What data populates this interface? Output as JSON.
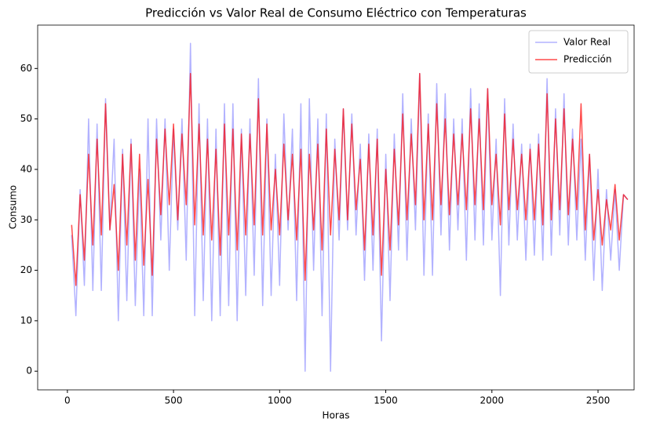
{
  "chart_data": {
    "type": "line",
    "title": "Predicción vs Valor Real de Consumo Eléctrico con Temperaturas",
    "x_label": "Horas",
    "y_label": "Consumo",
    "x": [
      20,
      40,
      60,
      80,
      100,
      120,
      140,
      160,
      180,
      200,
      220,
      240,
      260,
      280,
      300,
      320,
      340,
      360,
      380,
      400,
      420,
      440,
      460,
      480,
      500,
      520,
      540,
      560,
      580,
      600,
      620,
      640,
      660,
      680,
      700,
      720,
      740,
      760,
      780,
      800,
      820,
      840,
      860,
      880,
      900,
      920,
      940,
      960,
      980,
      1000,
      1020,
      1040,
      1060,
      1080,
      1100,
      1120,
      1140,
      1160,
      1180,
      1200,
      1220,
      1240,
      1260,
      1280,
      1300,
      1320,
      1340,
      1360,
      1380,
      1400,
      1420,
      1440,
      1460,
      1480,
      1500,
      1520,
      1540,
      1560,
      1580,
      1600,
      1620,
      1640,
      1660,
      1680,
      1700,
      1720,
      1740,
      1760,
      1780,
      1800,
      1820,
      1840,
      1860,
      1880,
      1900,
      1920,
      1940,
      1960,
      1980,
      2000,
      2020,
      2040,
      2060,
      2080,
      2100,
      2120,
      2140,
      2160,
      2180,
      2200,
      2220,
      2240,
      2260,
      2280,
      2300,
      2320,
      2340,
      2360,
      2380,
      2400,
      2420,
      2440,
      2460,
      2480,
      2500,
      2520,
      2540,
      2560,
      2580,
      2600,
      2620,
      2640
    ],
    "series": [
      {
        "name": "Valor Real",
        "color": "#0000ff",
        "alpha": 0.3,
        "values": [
          27,
          11,
          36,
          17,
          50,
          16,
          49,
          16,
          54,
          28,
          46,
          10,
          44,
          14,
          46,
          13,
          40,
          11,
          50,
          11,
          50,
          26,
          50,
          20,
          48,
          28,
          50,
          22,
          65,
          11,
          53,
          14,
          50,
          10,
          48,
          11,
          53,
          13,
          53,
          10,
          48,
          15,
          50,
          19,
          58,
          13,
          50,
          15,
          43,
          17,
          51,
          28,
          48,
          14,
          53,
          0,
          54,
          20,
          50,
          11,
          51,
          0,
          46,
          26,
          52,
          28,
          51,
          27,
          45,
          18,
          47,
          20,
          48,
          6,
          43,
          14,
          47,
          24,
          55,
          22,
          50,
          28,
          59,
          19,
          51,
          19,
          57,
          27,
          55,
          24,
          50,
          28,
          50,
          22,
          56,
          26,
          53,
          25,
          56,
          26,
          46,
          15,
          54,
          25,
          49,
          26,
          45,
          22,
          45,
          23,
          47,
          22,
          58,
          23,
          52,
          27,
          55,
          25,
          48,
          26,
          46,
          22,
          43,
          18,
          40,
          16,
          36,
          22,
          36,
          20,
          35,
          34
        ]
      },
      {
        "name": "Predicción",
        "color": "#ff0000",
        "alpha": 0.7,
        "values": [
          29,
          17,
          35,
          22,
          43,
          25,
          46,
          27,
          53,
          28,
          37,
          20,
          43,
          25,
          45,
          22,
          43,
          21,
          38,
          19,
          46,
          31,
          48,
          33,
          49,
          30,
          47,
          33,
          59,
          29,
          49,
          27,
          46,
          26,
          44,
          23,
          49,
          27,
          48,
          24,
          47,
          27,
          47,
          29,
          54,
          27,
          49,
          28,
          40,
          27,
          45,
          30,
          43,
          26,
          44,
          18,
          43,
          28,
          45,
          24,
          48,
          27,
          44,
          30,
          52,
          30,
          49,
          32,
          42,
          24,
          45,
          27,
          46,
          19,
          40,
          24,
          44,
          29,
          51,
          30,
          47,
          33,
          59,
          30,
          49,
          30,
          53,
          33,
          50,
          31,
          47,
          33,
          47,
          32,
          52,
          33,
          50,
          32,
          56,
          33,
          43,
          29,
          51,
          32,
          46,
          32,
          43,
          30,
          44,
          30,
          45,
          29,
          55,
          30,
          50,
          32,
          52,
          31,
          46,
          32,
          53,
          28,
          43,
          26,
          36,
          25,
          34,
          28,
          37,
          26,
          35,
          34
        ]
      }
    ],
    "xlim": [
      -140,
      2670
    ],
    "ylim": [
      -3.7,
      68.6
    ],
    "xticks": [
      0,
      500,
      1000,
      1500,
      2000,
      2500
    ],
    "yticks": [
      0,
      10,
      20,
      30,
      40,
      50,
      60
    ],
    "legend": "upper right",
    "grid": false
  }
}
